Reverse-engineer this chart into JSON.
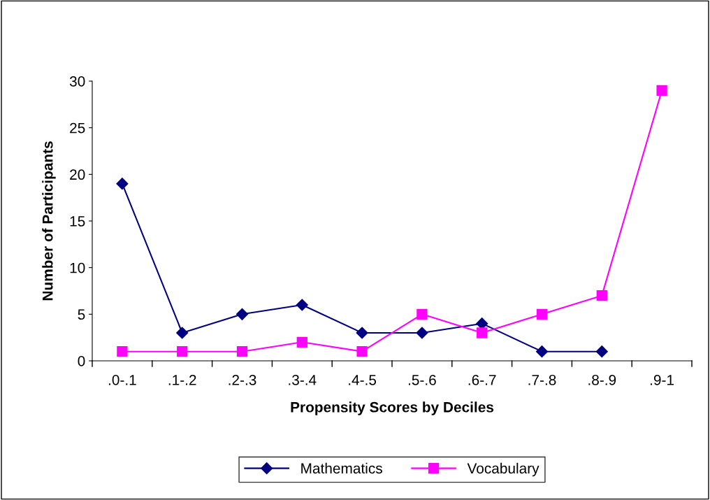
{
  "chart_data": {
    "type": "line",
    "xlabel": "Propensity Scores by Deciles",
    "ylabel": "Number of Participants",
    "categories": [
      ".0-.1",
      ".1-.2",
      ".2-.3",
      ".3-.4",
      ".4-.5",
      ".5-.6",
      ".6-.7",
      ".7-.8",
      ".8-.9",
      ".9-1"
    ],
    "series": [
      {
        "name": "Mathematics",
        "color": "#000080",
        "marker": "diamond",
        "values": [
          19,
          3,
          5,
          6,
          3,
          3,
          4,
          1,
          1,
          null
        ]
      },
      {
        "name": "Vocabulary",
        "color": "#ff00ff",
        "marker": "square",
        "values": [
          1,
          1,
          1,
          2,
          1,
          5,
          3,
          5,
          7,
          29
        ]
      }
    ],
    "ylim": [
      0,
      30
    ],
    "yticks": [
      0,
      5,
      10,
      15,
      20,
      25,
      30
    ],
    "grid": false,
    "legend": "bottom",
    "line_style": "solid"
  }
}
